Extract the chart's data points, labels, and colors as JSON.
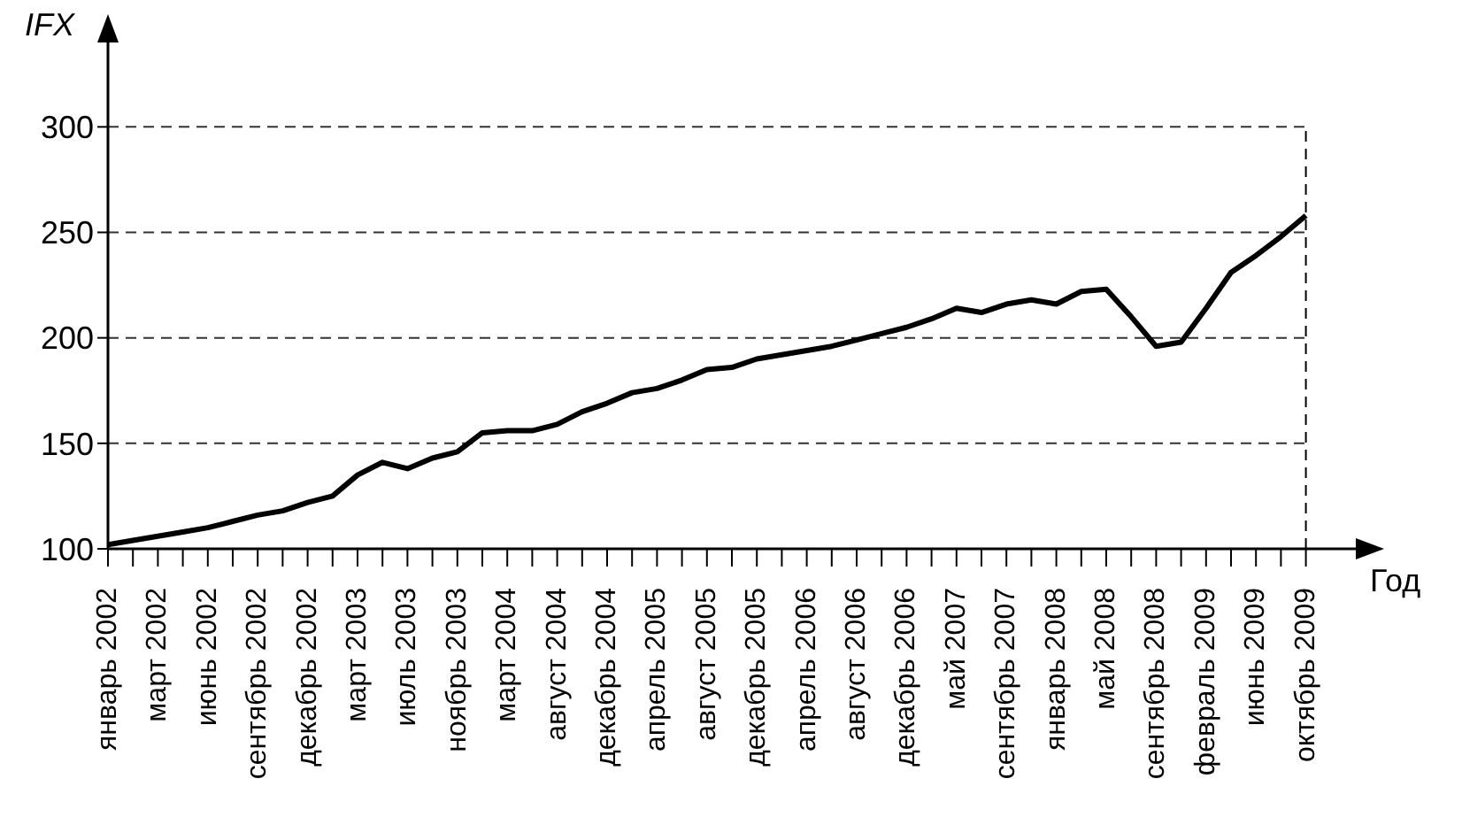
{
  "chart_data": {
    "type": "line",
    "xlabel": "Год",
    "ylabel": "IFX",
    "categories": [
      "январь 2002",
      null,
      "март 2002",
      null,
      "июнь 2002",
      null,
      "сентябрь 2002",
      null,
      "декабрь 2002",
      null,
      "март 2003",
      null,
      "июль 2003",
      null,
      "ноябрь 2003",
      null,
      "март 2004",
      null,
      "август 2004",
      null,
      "декабрь 2004",
      null,
      "апрель 2005",
      null,
      "август 2005",
      null,
      "декабрь 2005",
      null,
      "апрель 2006",
      null,
      "август 2006",
      null,
      "декабрь 2006",
      null,
      "май 2007",
      null,
      "сентябрь 2007",
      null,
      "январь 2008",
      null,
      "май 2008",
      null,
      "сентябрь 2008",
      null,
      "февраль 2009",
      null,
      "июнь 2009",
      null,
      "октябрь 2009"
    ],
    "series": [
      {
        "color": "#000000",
        "values": [
          102,
          104,
          106,
          108,
          110,
          113,
          116,
          118,
          122,
          125,
          135,
          141,
          138,
          143,
          146,
          155,
          156,
          156,
          159,
          165,
          169,
          174,
          176,
          180,
          185,
          186,
          190,
          192,
          194,
          196,
          199,
          202,
          205,
          209,
          214,
          212,
          216,
          218,
          216,
          222,
          223,
          210,
          196,
          198,
          214,
          231,
          239,
          248,
          258
        ]
      }
    ],
    "ylim": [
      100,
      340
    ],
    "yticks": [
      100,
      150,
      200,
      250,
      300
    ],
    "grid": "y",
    "marker": "none",
    "line_style": "solid",
    "ref_lines": [
      {
        "axis": "x",
        "value": "октябрь 2009",
        "label": null,
        "color": "#000000",
        "line_style": "dashed"
      }
    ]
  }
}
